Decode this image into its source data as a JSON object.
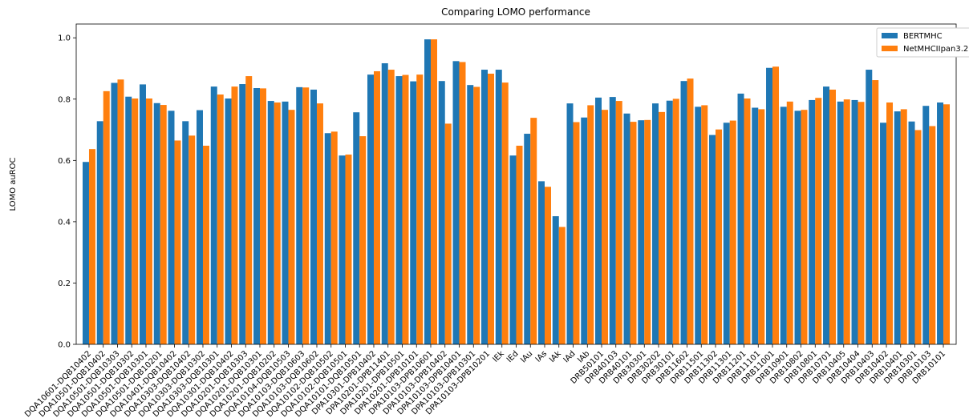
{
  "chart_data": {
    "type": "bar",
    "title": "Comparing LOMO performance",
    "y_label": "LOMO auROC",
    "categories": [
      "DQA10601-DQB10402",
      "DQA10501-DQB10402",
      "DQA10501-DQB10303",
      "DQA10501-DQB10302",
      "DQA10501-DQB10301",
      "DQA10501-DQB10201",
      "DQA10401-DQB10402",
      "DQA10303-DQB10402",
      "DQA10303-DQB10302",
      "DQA10303-DQB10301",
      "DQA10301-DQB10402",
      "DQA10201-DQB10303",
      "DQA10201-DQB10301",
      "DQA10201-DQB10202",
      "DQA10104-DQB10503",
      "DQA10103-DQB10603",
      "DQA10103-DQB10602",
      "DQA10102-DQB10502",
      "DQA10102-DQB10501",
      "DQA10101-DQB10501",
      "DPA10301-DPB10402",
      "DPA10201-DPB11401",
      "DPA10201-DPB10501",
      "DPA10201-DPB10101",
      "DPA10103-DPB10601",
      "DPA10103-DPB10402",
      "DPA10103-DPB10401",
      "DPA10103-DPB10301",
      "DPA10103-DPB10201",
      "IEk",
      "IEd",
      "IAu",
      "IAs",
      "IAk",
      "IAd",
      "IAb",
      "DRB50101",
      "DRB40103",
      "DRB40101",
      "DRB30301",
      "DRB30202",
      "DRB30101",
      "DRB11602",
      "DRB11501",
      "DRB11302",
      "DRB11301",
      "DRB11201",
      "DRB11101",
      "DRB11001",
      "DRB10901",
      "DRB10802",
      "DRB10801",
      "DRB10701",
      "DRB10405",
      "DRB10404",
      "DRB10403",
      "DRB10402",
      "DRB10401",
      "DRB10301",
      "DRB10103",
      "DRB10101"
    ],
    "series": [
      {
        "name": "BERTMHC",
        "color": "#1f77b4",
        "values": [
          0.595,
          0.728,
          0.853,
          0.808,
          0.848,
          0.787,
          0.762,
          0.728,
          0.764,
          0.841,
          0.802,
          0.849,
          0.836,
          0.794,
          0.792,
          0.839,
          0.831,
          0.689,
          0.616,
          0.757,
          0.88,
          0.917,
          0.875,
          0.858,
          0.995,
          0.859,
          0.924,
          0.846,
          0.896,
          0.896,
          0.616,
          0.687,
          0.532,
          0.418,
          0.786,
          0.74,
          0.805,
          0.807,
          0.753,
          0.731,
          0.786,
          0.795,
          0.859,
          0.775,
          0.683,
          0.723,
          0.818,
          0.772,
          0.902,
          0.775,
          0.762,
          0.797,
          0.841,
          0.792,
          0.797,
          0.896,
          0.723,
          0.76,
          0.727,
          0.778,
          0.789
        ]
      },
      {
        "name": "NetMHCIIpan3.2",
        "color": "#ff7f0e",
        "values": [
          0.637,
          0.826,
          0.864,
          0.802,
          0.802,
          0.781,
          0.665,
          0.681,
          0.648,
          0.815,
          0.841,
          0.875,
          0.835,
          0.789,
          0.765,
          0.838,
          0.786,
          0.694,
          0.619,
          0.679,
          0.891,
          0.896,
          0.879,
          0.88,
          0.995,
          0.72,
          0.921,
          0.84,
          0.883,
          0.854,
          0.648,
          0.739,
          0.514,
          0.383,
          0.725,
          0.78,
          0.765,
          0.794,
          0.726,
          0.732,
          0.758,
          0.801,
          0.867,
          0.78,
          0.701,
          0.73,
          0.802,
          0.767,
          0.906,
          0.792,
          0.765,
          0.804,
          0.831,
          0.799,
          0.791,
          0.862,
          0.789,
          0.767,
          0.699,
          0.712,
          0.783
        ]
      }
    ],
    "ylim": [
      0,
      1.045
    ],
    "yticks": [
      {
        "value": 0,
        "label": "0.0"
      },
      0.2,
      0.4,
      0.6,
      0.8,
      {
        "value": 1,
        "label": "1.0"
      }
    ],
    "legend": "upper right"
  }
}
